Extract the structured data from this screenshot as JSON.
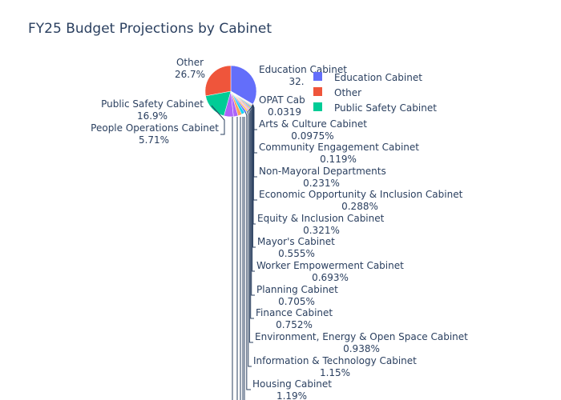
{
  "chart_data": {
    "type": "pie",
    "title": "FY25 Budget Projections by Cabinet",
    "legend_position": "top-right",
    "legend": [
      {
        "name": "Education Cabinet",
        "color": "#636efa"
      },
      {
        "name": "Other",
        "color": "#EF553B"
      },
      {
        "name": "Public Safety Cabinet",
        "color": "#00cc96"
      }
    ],
    "slices": [
      {
        "label": "Education Cabinet",
        "percent_text": "32.",
        "value": 32.0,
        "color": "#636efa"
      },
      {
        "label": "OPAT Cab",
        "percent_text": "0.0319",
        "value": 0.0319,
        "color": "#FF97FF"
      },
      {
        "label": "Arts & Culture Cabinet",
        "percent_text": "0.0975%",
        "value": 0.0975,
        "color": "#FECB52"
      },
      {
        "label": "Community Engagement Cabinet",
        "percent_text": "0.119%",
        "value": 0.119,
        "color": "#636efa"
      },
      {
        "label": "Non-Mayoral Departments",
        "percent_text": "0.231%",
        "value": 0.231,
        "color": "#EF553B"
      },
      {
        "label": "Economic Opportunity & Inclusion Cabinet",
        "percent_text": "0.288%",
        "value": 0.288,
        "color": "#00cc96"
      },
      {
        "label": "Equity & Inclusion Cabinet",
        "percent_text": "0.321%",
        "value": 0.321,
        "color": "#ab63fa"
      },
      {
        "label": "Mayor's Cabinet",
        "percent_text": "0.555%",
        "value": 0.555,
        "color": "#FFA15A"
      },
      {
        "label": "Worker Empowerment Cabinet",
        "percent_text": "0.693%",
        "value": 0.693,
        "color": "#19d3f3"
      },
      {
        "label": "Planning Cabinet",
        "percent_text": "0.705%",
        "value": 0.705,
        "color": "#FF6692"
      },
      {
        "label": "Finance Cabinet",
        "percent_text": "0.752%",
        "value": 0.752,
        "color": "#B6E880"
      },
      {
        "label": "Environment, Energy & Open Space Cabinet",
        "percent_text": "0.938%",
        "value": 0.938,
        "color": "#FF97FF"
      },
      {
        "label": "Information & Technology Cabinet",
        "percent_text": "1.15%",
        "value": 1.15,
        "color": "#FECB52"
      },
      {
        "label": "Housing Cabinet",
        "percent_text": "1.19%",
        "value": 1.19,
        "color": "#636efa"
      },
      {
        "label": "",
        "percent_text": "",
        "value": 2.0,
        "color": "#19d3f3"
      },
      {
        "label": "",
        "percent_text": "",
        "value": 2.3,
        "color": "#FFA15A"
      },
      {
        "label": "",
        "percent_text": "",
        "value": 2.8,
        "color": "#ab63fa"
      },
      {
        "label": "People Operations Cabinet",
        "percent_text": "5.71%",
        "value": 5.71,
        "color": "#ab63fa"
      },
      {
        "label": "Public Safety Cabinet",
        "percent_text": "16.9%",
        "value": 16.9,
        "color": "#00cc96"
      },
      {
        "label": "Other",
        "percent_text": "26.7%",
        "value": 26.7,
        "color": "#EF553B"
      }
    ]
  }
}
